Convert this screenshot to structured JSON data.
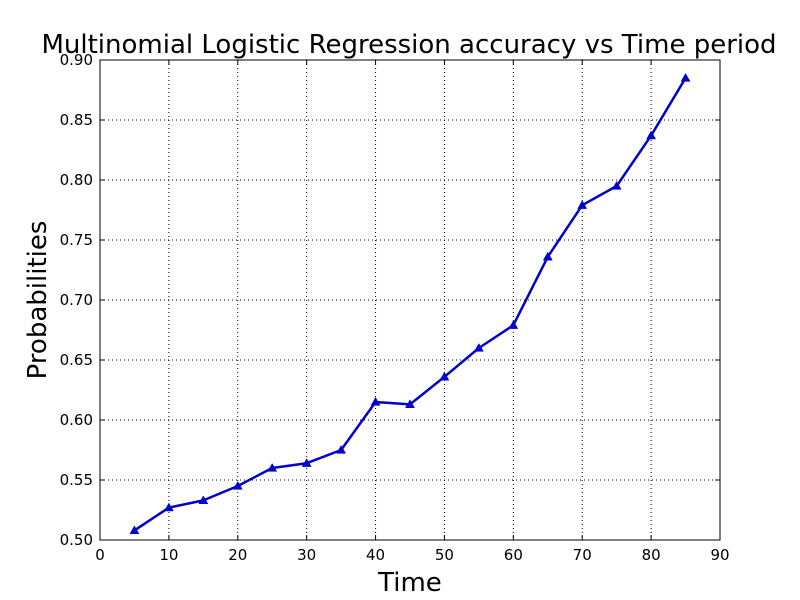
{
  "chart_data": {
    "type": "line",
    "title": "Multinomial Logistic Regression accuracy vs Time period",
    "xlabel": "Time",
    "ylabel": "Probabilities",
    "xlim": [
      0,
      90
    ],
    "ylim": [
      0.5,
      0.9
    ],
    "xticks": [
      0,
      10,
      20,
      30,
      40,
      50,
      60,
      70,
      80,
      90
    ],
    "yticks": [
      0.5,
      0.55,
      0.6,
      0.65,
      0.7,
      0.75,
      0.8,
      0.85,
      0.9
    ],
    "xtick_labels": [
      "0",
      "10",
      "20",
      "30",
      "40",
      "50",
      "60",
      "70",
      "80",
      "90"
    ],
    "ytick_labels": [
      "0.50",
      "0.55",
      "0.60",
      "0.65",
      "0.70",
      "0.75",
      "0.80",
      "0.85",
      "0.90"
    ],
    "grid": true,
    "series": [
      {
        "color": "#0000cc",
        "marker": "triangle",
        "x": [
          5,
          10,
          15,
          20,
          25,
          30,
          35,
          40,
          45,
          50,
          55,
          60,
          65,
          70,
          75,
          80,
          85
        ],
        "y": [
          0.508,
          0.527,
          0.533,
          0.545,
          0.56,
          0.564,
          0.575,
          0.615,
          0.613,
          0.636,
          0.66,
          0.679,
          0.736,
          0.779,
          0.795,
          0.837,
          0.885
        ]
      }
    ]
  }
}
